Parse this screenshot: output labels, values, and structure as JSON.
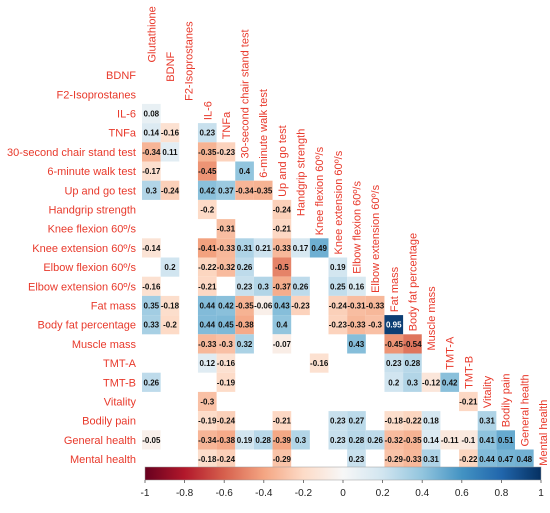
{
  "chart_data": {
    "type": "heatmap",
    "title": "",
    "variables": [
      "Glutathione",
      "BDNF",
      "F2-Isoprostanes",
      "IL-6",
      "TNFa",
      "30-second chair stand test",
      "6-minute walk test",
      "Up and go test",
      "Handgrip strength",
      "Knee flexion 60º/s",
      "Knee extension 60º/s",
      "Elbow flexion 60º/s",
      "Elbow extension 60º/s",
      "Fat mass",
      "Body fat percentage",
      "Muscle mass",
      "TMT-A",
      "TMT-B",
      "Vitality",
      "Bodily pain",
      "General health",
      "Mental health"
    ],
    "row_labels": [
      "BDNF",
      "F2-Isoprostanes",
      "IL-6",
      "TNFa",
      "30-second chair stand test",
      "6-minute walk test",
      "Up and go test",
      "Handgrip strength",
      "Knee flexion 60º/s",
      "Knee extension 60º/s",
      "Elbow flexion 60º/s",
      "Elbow extension 60º/s",
      "Fat mass",
      "Body fat percentage",
      "Muscle mass",
      "TMT-A",
      "TMT-B",
      "Vitality",
      "Bodily pain",
      "General health",
      "Mental health"
    ],
    "column_labels": [
      "Glutathione",
      "BDNF",
      "F2-Isoprostanes",
      "IL-6",
      "TNFa",
      "30-second chair stand test",
      "6-minute walk test",
      "Up and go test",
      "Handgrip strength",
      "Knee flexion 60º/s",
      "Knee extension 60º/s",
      "Elbow flexion 60º/s",
      "Elbow extension 60º/s",
      "Fat mass",
      "Body fat percentage",
      "Muscle mass",
      "TMT-A",
      "TMT-B",
      "Vitality",
      "Bodily pain",
      "General health"
    ],
    "cells": [
      [
        "",
        "",
        "",
        "",
        "",
        "",
        "",
        "",
        "",
        "",
        "",
        "",
        "",
        "",
        "",
        "",
        "",
        "",
        "",
        "",
        ""
      ],
      [
        "",
        "",
        "",
        "",
        "",
        "",
        "",
        "",
        "",
        "",
        "",
        "",
        "",
        "",
        "",
        "",
        "",
        "",
        "",
        "",
        ""
      ],
      [
        "0.08",
        "",
        "",
        "",
        "",
        "",
        "",
        "",
        "",
        "",
        "",
        "",
        "",
        "",
        "",
        "",
        "",
        "",
        "",
        "",
        ""
      ],
      [
        "0.14",
        "-0.16",
        "",
        "0.23",
        "",
        "",
        "",
        "",
        "",
        "",
        "",
        "",
        "",
        "",
        "",
        "",
        "",
        "",
        "",
        "",
        ""
      ],
      [
        "-0.34",
        "0.11",
        "",
        "-0.35",
        "-0.23",
        "",
        "",
        "",
        "",
        "",
        "",
        "",
        "",
        "",
        "",
        "",
        "",
        "",
        "",
        "",
        ""
      ],
      [
        "-0.17",
        "",
        "",
        "-0.45",
        "",
        "0.4",
        "",
        "",
        "",
        "",
        "",
        "",
        "",
        "",
        "",
        "",
        "",
        "",
        "",
        "",
        ""
      ],
      [
        "0.3",
        "-0.24",
        "",
        "0.42",
        "0.37",
        "-0.34",
        "-0.35",
        "",
        "",
        "",
        "",
        "",
        "",
        "",
        "",
        "",
        "",
        "",
        "",
        "",
        ""
      ],
      [
        "",
        "",
        "",
        "-0.2",
        "",
        "",
        "",
        "-0.24",
        "",
        "",
        "",
        "",
        "",
        "",
        "",
        "",
        "",
        "",
        "",
        "",
        ""
      ],
      [
        "",
        "",
        "",
        "",
        "-0.31",
        "",
        "",
        "-0.21",
        "",
        "",
        "",
        "",
        "",
        "",
        "",
        "",
        "",
        "",
        "",
        "",
        ""
      ],
      [
        "-0.14",
        "",
        "",
        "-0.41",
        "-0.33",
        "0.31",
        "0.21",
        "-0.33",
        "0.17",
        "0.49",
        "",
        "",
        "",
        "",
        "",
        "",
        "",
        "",
        "",
        "",
        ""
      ],
      [
        "",
        "0.2",
        "",
        "-0.22",
        "-0.32",
        "0.26",
        "",
        "-0.5",
        "",
        "",
        "0.19",
        "",
        "",
        "",
        "",
        "",
        "",
        "",
        "",
        "",
        ""
      ],
      [
        "-0.16",
        "",
        "",
        "-0.21",
        "",
        "0.23",
        "0.3",
        "-0.37",
        "0.26",
        "",
        "0.25",
        "0.16",
        "",
        "",
        "",
        "",
        "",
        "",
        "",
        "",
        ""
      ],
      [
        "0.35",
        "-0.18",
        "",
        "0.44",
        "0.42",
        "-0.35",
        "-0.06",
        "0.43",
        "-0.23",
        "",
        "-0.24",
        "-0.31",
        "-0.33",
        "",
        "",
        "",
        "",
        "",
        "",
        "",
        ""
      ],
      [
        "0.33",
        "-0.2",
        "",
        "0.44",
        "0.45",
        "-0.38",
        "",
        "0.4",
        "",
        "",
        "-0.23",
        "-0.33",
        "-0.3",
        "0.95",
        "",
        "",
        "",
        "",
        "",
        "",
        ""
      ],
      [
        "",
        "",
        "",
        "-0.33",
        "-0.3",
        "0.32",
        "",
        "-0.07",
        "",
        "",
        "",
        "0.43",
        "",
        "-0.45",
        "-0.54",
        "",
        "",
        "",
        "",
        "",
        ""
      ],
      [
        "",
        "",
        "",
        "0.12",
        "-0.16",
        "",
        "",
        "",
        "",
        "-0.16",
        "",
        "",
        "",
        "0.23",
        "0.28",
        "",
        "",
        "",
        "",
        "",
        ""
      ],
      [
        "0.26",
        "",
        "",
        "",
        "-0.19",
        "",
        "",
        "",
        "",
        "",
        "",
        "",
        "",
        "0.2",
        "0.3",
        "-0.12",
        "0.42",
        "",
        "",
        "",
        ""
      ],
      [
        "",
        "",
        "",
        "-0.3",
        "",
        "",
        "",
        "",
        "",
        "",
        "",
        "",
        "",
        "",
        "",
        "",
        "",
        "-0.21",
        "",
        "",
        ""
      ],
      [
        "",
        "",
        "",
        "-0.19",
        "-0.24",
        "",
        "",
        "-0.21",
        "",
        "",
        "0.23",
        "0.27",
        "",
        "-0.18",
        "-0.22",
        "0.18",
        "",
        "",
        "0.31",
        "",
        ""
      ],
      [
        "-0.05",
        "",
        "",
        "-0.34",
        "-0.38",
        "0.19",
        "0.28",
        "-0.39",
        "0.3",
        "",
        "0.23",
        "0.28",
        "0.26",
        "-0.32",
        "-0.35",
        "0.14",
        "-0.11",
        "-0.1",
        "0.41",
        "0.51",
        ""
      ],
      [
        "",
        "",
        "",
        "-0.18",
        "-0.24",
        "",
        "",
        "-0.29",
        "",
        "",
        "",
        "0.23",
        "",
        "-0.29",
        "-0.33",
        "0.31",
        "",
        "-0.22",
        "0.44",
        "0.47",
        "0.48"
      ]
    ],
    "colorbar": {
      "ticks": [
        "-1",
        "-0.8",
        "-0.6",
        "-0.4",
        "-0.2",
        "0",
        "0.2",
        "0.4",
        "0.6",
        "0.8",
        "1"
      ],
      "range": [
        -1,
        1
      ],
      "colors": [
        "#67001f",
        "#b2182b",
        "#d6604d",
        "#f4a582",
        "#fddbc7",
        "#f7f7f7",
        "#d1e5f0",
        "#92c5de",
        "#4393c3",
        "#2166ac",
        "#053061"
      ]
    },
    "label_color": "#e8392b"
  }
}
